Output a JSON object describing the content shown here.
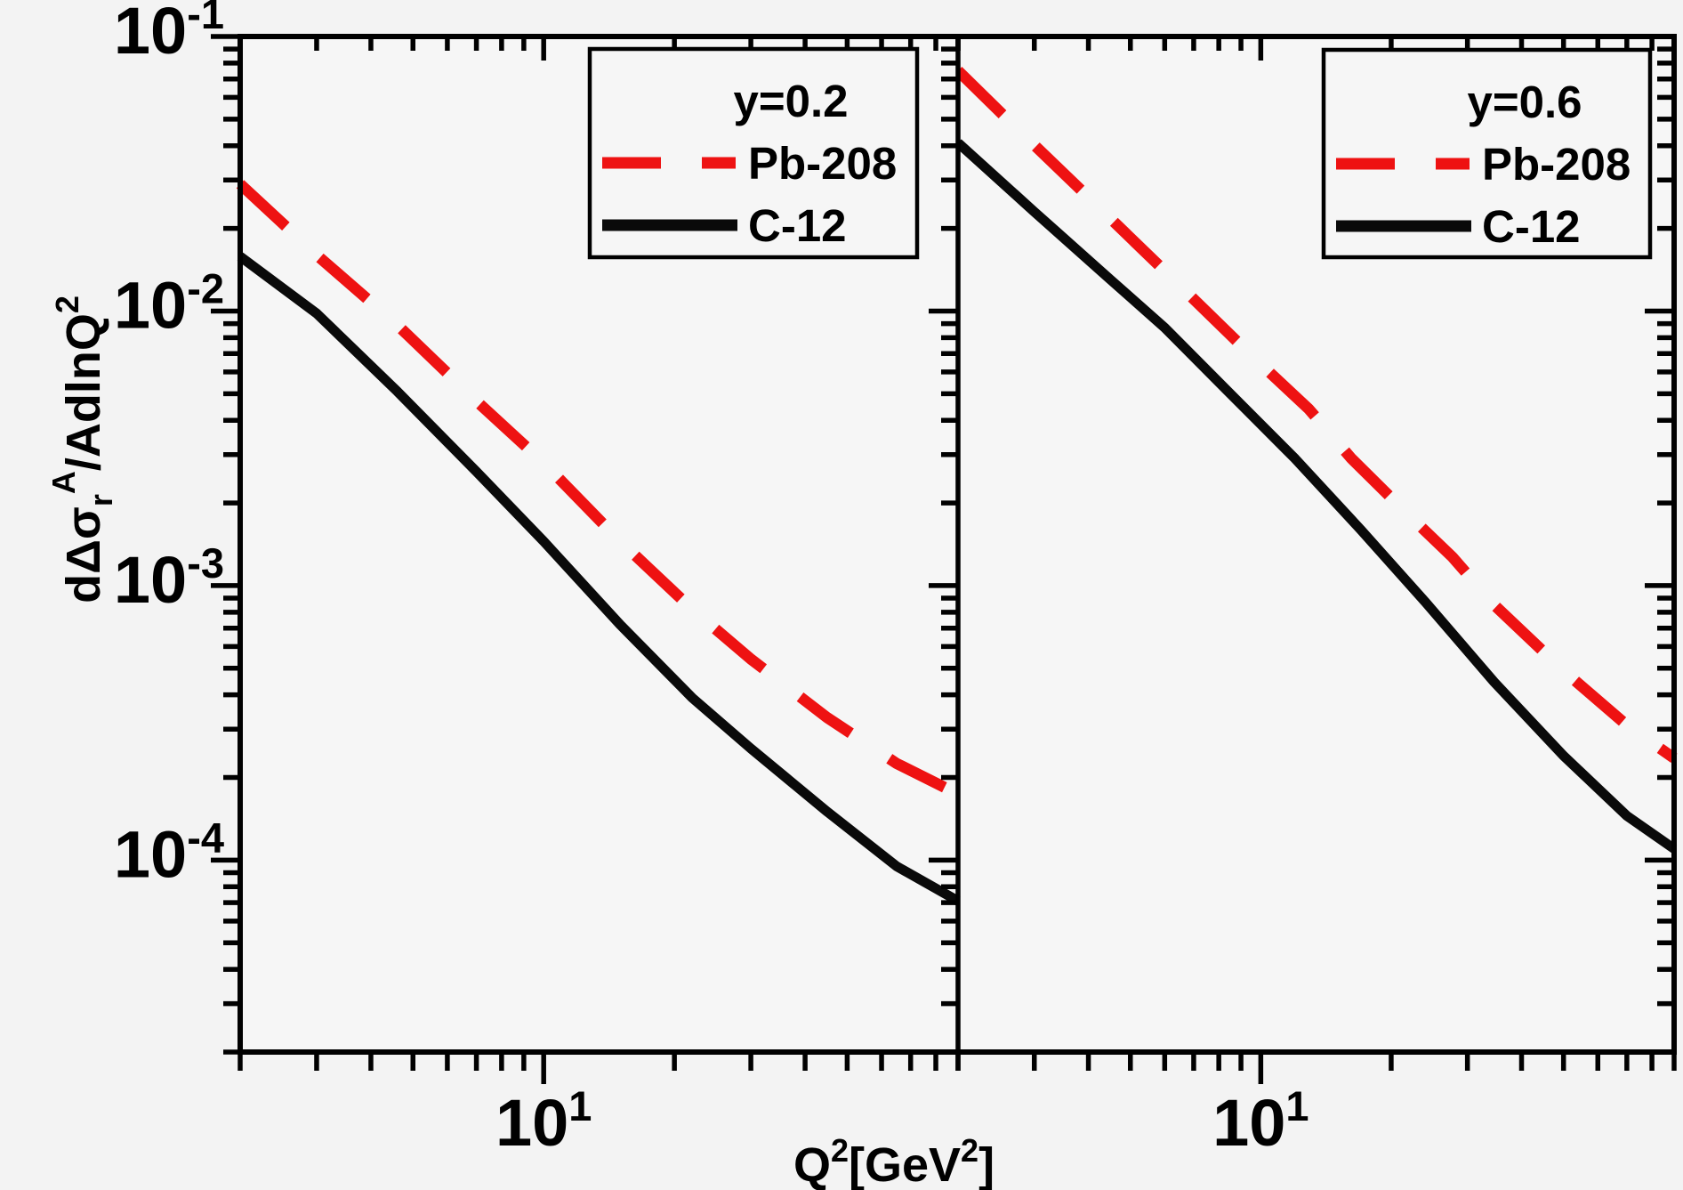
{
  "colors": {
    "background": "#f3f3f3",
    "plot_background": "#f6f6f6",
    "axis": "#000000",
    "pb_red": "#ee1212",
    "c12_black": "#0a0a0a"
  },
  "axes": {
    "x_axis_title_parts": {
      "q": "Q",
      "q_exp": "2",
      "bracket_gev": "[GeV",
      "gev_exp": "2",
      "bracket_close": "]"
    },
    "y_axis_title_parts": {
      "p1": "dΔσ",
      "sub_r": "r",
      "sup_a": "A",
      "p2": "/AdlnQ",
      "exp": "2"
    },
    "x_tick_label": {
      "base": "10",
      "exp": "1"
    },
    "y_tick_labels": [
      {
        "base": "10",
        "exp": "-1",
        "value": 0.1
      },
      {
        "base": "10",
        "exp": "-2",
        "value": 0.01
      },
      {
        "base": "10",
        "exp": "-3",
        "value": 0.001
      },
      {
        "base": "10",
        "exp": "-4",
        "value": 0.0001
      }
    ],
    "x_range": [
      2,
      90
    ],
    "y_range": [
      2e-05,
      0.1
    ],
    "x_minor_ticks": [
      2,
      3,
      4,
      5,
      6,
      7,
      8,
      9,
      20,
      30,
      40,
      50,
      60,
      70,
      80,
      90
    ],
    "x_major_ticks": [
      10
    ],
    "y_minor_mantissas": [
      9,
      8,
      7,
      6,
      5,
      4,
      3,
      2
    ],
    "y_minor_decades": [
      -2,
      -3,
      -4,
      -5
    ],
    "y_major_values": [
      0.1,
      0.01,
      0.001,
      0.0001
    ]
  },
  "legend": {
    "panel1_title": "y=0.2",
    "panel2_title": "y=0.6",
    "pb_label": "Pb-208",
    "c12_label": "C-12"
  },
  "chart_data": [
    {
      "type": "line",
      "panel": "left",
      "subtitle": "y=0.2",
      "xlabel": "Q^2 [GeV^2]",
      "ylabel": "d(Delta sigma_r^A)/A dlnQ^2",
      "xscale": "log",
      "yscale": "log",
      "x_range": [
        2,
        90
      ],
      "y_range": [
        2e-05,
        0.1
      ],
      "grid": false,
      "legend_position": "top-right",
      "series": [
        {
          "name": "Pb-208",
          "style": "dashed",
          "color": "#ee1212",
          "points": [
            [
              2,
              0.029
            ],
            [
              3,
              0.016
            ],
            [
              4.6,
              0.0089
            ],
            [
              7,
              0.0047
            ],
            [
              10,
              0.0028
            ],
            [
              15,
              0.00145
            ],
            [
              22,
              0.00082
            ],
            [
              30,
              0.00054
            ],
            [
              45,
              0.00033
            ],
            [
              65,
              0.000225
            ],
            [
              90,
              0.000174
            ]
          ]
        },
        {
          "name": "C-12",
          "style": "solid",
          "color": "#0a0a0a",
          "points": [
            [
              2,
              0.0158
            ],
            [
              3,
              0.0098
            ],
            [
              4.6,
              0.0051
            ],
            [
              7,
              0.0026
            ],
            [
              10,
              0.00145
            ],
            [
              15,
              0.00072
            ],
            [
              22,
              0.00039
            ],
            [
              30,
              0.000255
            ],
            [
              45,
              0.00015
            ],
            [
              65,
              9.5e-05
            ],
            [
              90,
              7.1e-05
            ]
          ]
        }
      ]
    },
    {
      "type": "line",
      "panel": "right",
      "subtitle": "y=0.6",
      "xlabel": "Q^2 [GeV^2]",
      "ylabel": "d(Delta sigma_r^A)/A dlnQ^2",
      "xscale": "log",
      "yscale": "log",
      "x_range": [
        2,
        90
      ],
      "y_range": [
        2e-05,
        0.1
      ],
      "grid": false,
      "legend_position": "top-right",
      "series": [
        {
          "name": "Pb-208",
          "style": "dashed",
          "color": "#ee1212",
          "points": [
            [
              2,
              0.075
            ],
            [
              2.6,
              0.05
            ],
            [
              4,
              0.026
            ],
            [
              6,
              0.014
            ],
            [
              9.6,
              0.0068
            ],
            [
              12.9,
              0.0044
            ],
            [
              16.2,
              0.0029
            ],
            [
              22,
              0.0018
            ],
            [
              27.7,
              0.00127
            ],
            [
              34.6,
              0.00085
            ],
            [
              50,
              0.00049
            ],
            [
              70,
              0.00031
            ],
            [
              90,
              0.000235
            ]
          ]
        },
        {
          "name": "C-12",
          "style": "solid",
          "color": "#0a0a0a",
          "points": [
            [
              2,
              0.041
            ],
            [
              3,
              0.023
            ],
            [
              4.5,
              0.013
            ],
            [
              6,
              0.0087
            ],
            [
              8.3,
              0.0052
            ],
            [
              12,
              0.0029
            ],
            [
              17,
              0.0016
            ],
            [
              24,
              0.00087
            ],
            [
              34.6,
              0.000445
            ],
            [
              50,
              0.00024
            ],
            [
              70,
              0.000145
            ],
            [
              90,
              0.00011
            ]
          ]
        }
      ]
    }
  ]
}
